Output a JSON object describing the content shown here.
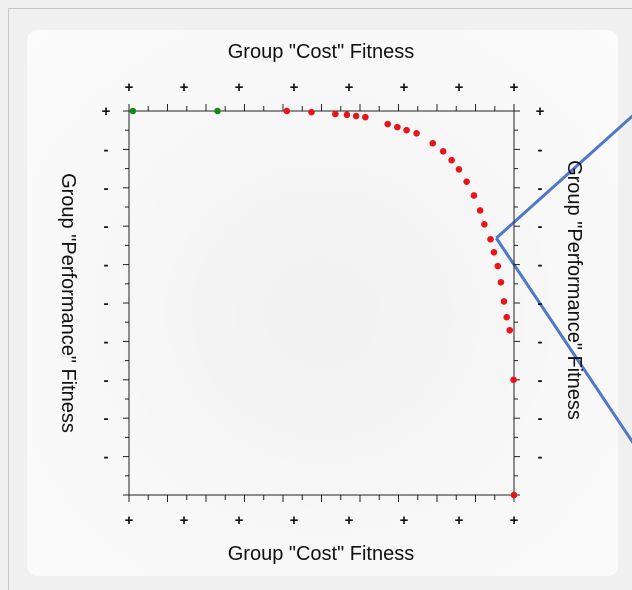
{
  "chart_data": {
    "type": "scatter",
    "title": "",
    "top_axis_label": "Group \"Cost\" Fitness",
    "bottom_axis_label": "Group \"Cost\" Fitness",
    "left_axis_label": "Group \"Performance\" Fitness",
    "right_axis_label": "Group \"Performance\" Fitness",
    "x_tick_labels": [
      "+",
      "+",
      "+",
      "+",
      "+",
      "+",
      "+",
      "+"
    ],
    "y_tick_labels": [
      "+",
      "-",
      "-",
      "-",
      "-",
      "-",
      "-",
      "-",
      "-",
      "-"
    ],
    "xlim": [
      0,
      100
    ],
    "ylim": [
      0,
      100
    ],
    "grid": false,
    "series": [
      {
        "color": "#138a1a",
        "points": [
          [
            1,
            100
          ],
          [
            23,
            100
          ]
        ]
      },
      {
        "color": "#e8141a",
        "points": [
          [
            41,
            100
          ],
          [
            47.4,
            99.7
          ],
          [
            53.6,
            99.2
          ],
          [
            56.6,
            99
          ],
          [
            59,
            98.7
          ],
          [
            61.4,
            98.4
          ],
          [
            67.2,
            96.6
          ],
          [
            69.7,
            95.8
          ],
          [
            72.1,
            95
          ],
          [
            74.7,
            94.2
          ],
          [
            78.9,
            91.6
          ],
          [
            81.6,
            89.5
          ],
          [
            83.8,
            87.2
          ],
          [
            85.7,
            84.8
          ],
          [
            87.7,
            81.6
          ],
          [
            89.6,
            78
          ],
          [
            91.2,
            74.1
          ],
          [
            92.3,
            70.5
          ],
          [
            93.9,
            66.6
          ],
          [
            94.8,
            63.2
          ],
          [
            95.8,
            59.6
          ],
          [
            96.6,
            55.4
          ],
          [
            97.4,
            50.4
          ],
          [
            98.1,
            46.3
          ],
          [
            98.9,
            42.9
          ],
          [
            99.9,
            30
          ],
          [
            100,
            0
          ]
        ]
      }
    ],
    "overlay_lines": [
      {
        "color": "#5078c8",
        "from": [
          95.4,
          66.9
        ],
        "to": [
          140,
          107
        ]
      },
      {
        "color": "#5078c8",
        "from": [
          95.4,
          66.9
        ],
        "to": [
          140,
          0
        ]
      }
    ]
  }
}
